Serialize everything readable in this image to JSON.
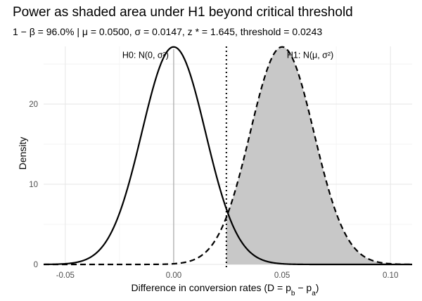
{
  "chart_data": {
    "type": "area",
    "title": "Power as shaded area under H1 beyond  critical threshold",
    "subtitle": "1 − β = 96.0%  |  μ = 0.0500,  σ = 0.0147,  z * = 1.645,  threshold = 0.0243",
    "xlabel": "Difference in conversion rates (D = p_b − p_a)",
    "ylabel": "Density",
    "xlim": [
      -0.06,
      0.11
    ],
    "ylim": [
      0,
      27.2
    ],
    "x_ticks": [
      -0.05,
      0.0,
      0.05,
      0.1
    ],
    "x_tick_labels": [
      "-0.05",
      "0.00",
      "0.05",
      "0.10"
    ],
    "y_ticks": [
      0,
      10,
      20
    ],
    "y_tick_labels": [
      "0",
      "10",
      "20"
    ],
    "grid": true,
    "parameters": {
      "mu": 0.05,
      "sigma": 0.0147,
      "z_star": 1.645,
      "threshold": 0.0243,
      "power": 0.96
    },
    "series": [
      {
        "name": "H0: N(0, σ²)",
        "distribution": "normal",
        "mean": 0.0,
        "sd": 0.0147,
        "line": "solid"
      },
      {
        "name": "H1: N(μ, σ²)",
        "distribution": "normal",
        "mean": 0.05,
        "sd": 0.0147,
        "line": "dashed"
      }
    ],
    "shaded_region": {
      "series": "H1: N(μ, σ²)",
      "from": 0.0243,
      "to": 0.11,
      "color": "#c8c8c8"
    },
    "reference_lines": [
      {
        "x": 0.0,
        "style": "solid",
        "color": "#a6a6a6"
      },
      {
        "x": 0.05,
        "style": "dashed",
        "color": "#a6a6a6"
      },
      {
        "x": 0.0243,
        "style": "dotted",
        "color": "#000000"
      }
    ],
    "annotations": [
      {
        "text": "H0: N(0, σ²)",
        "x": 0.0,
        "y": 26.3
      },
      {
        "text": "H1: N(μ, σ²)",
        "x": 0.05,
        "y": 26.3
      }
    ]
  }
}
